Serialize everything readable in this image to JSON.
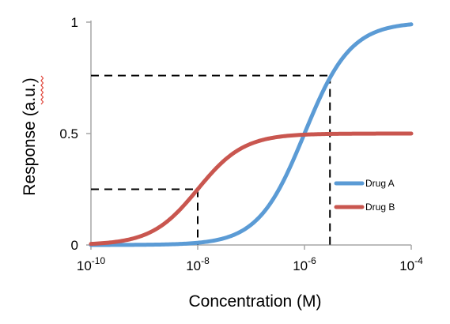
{
  "colors": {
    "drug_a": "#5b9bd5",
    "drug_b": "#c9564f",
    "axis": "#a6a6a6",
    "guide": "#000000",
    "spellcheck_underline": "#e0463b"
  },
  "chart_data": {
    "type": "line",
    "title": "",
    "xlabel": "Concentration (M)",
    "ylabel": "Response (a.u.)",
    "x_scale": "log10",
    "xlim": [
      1e-10,
      0.0001
    ],
    "ylim": [
      0,
      1
    ],
    "x_ticks": [
      {
        "base": "10",
        "exp": "-10",
        "value": 1e-10
      },
      {
        "base": "10",
        "exp": "-8",
        "value": 1e-08
      },
      {
        "base": "10",
        "exp": "-6",
        "value": 1e-06
      },
      {
        "base": "10",
        "exp": "-4",
        "value": 0.0001
      }
    ],
    "y_ticks": [
      {
        "label": "0",
        "value": 0
      },
      {
        "label": "0.5",
        "value": 0.5
      },
      {
        "label": "1",
        "value": 1
      }
    ],
    "grid": false,
    "legend_position": "right",
    "series": [
      {
        "name": "Drug A",
        "color_key": "drug_a",
        "top": 1.0,
        "ec50": 1e-06,
        "hill": 1,
        "x": [
          1e-10,
          1e-09,
          1e-08,
          1e-07,
          3e-07,
          1e-06,
          3e-06,
          1e-05,
          3e-05,
          0.0001
        ],
        "y": [
          0.0001,
          0.001,
          0.01,
          0.09,
          0.23,
          0.5,
          0.75,
          0.91,
          0.97,
          0.99
        ]
      },
      {
        "name": "Drug B",
        "color_key": "drug_b",
        "top": 0.5,
        "ec50": 1e-08,
        "hill": 1,
        "x": [
          1e-10,
          1e-09,
          1e-08,
          1e-07,
          1e-06,
          1e-05,
          0.0001
        ],
        "y": [
          0.005,
          0.045,
          0.25,
          0.455,
          0.495,
          0.5,
          0.5
        ]
      }
    ],
    "reference_lines": [
      {
        "x": 1e-08,
        "y": 0.25
      },
      {
        "x": 3e-06,
        "y": 0.76
      }
    ]
  }
}
